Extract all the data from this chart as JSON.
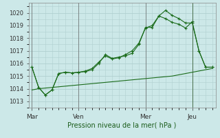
{
  "background_color": "#cce8e8",
  "grid_color": "#b0d0d0",
  "line_color": "#1a6b1a",
  "x_ticks_labels": [
    "Mar",
    "Ven",
    "Mer",
    "Jeu"
  ],
  "x_ticks_pos": [
    0,
    7,
    17,
    24
  ],
  "xlabel": "Pression niveau de la mer( hPa )",
  "ylim": [
    1012.5,
    1020.8
  ],
  "yticks": [
    1013,
    1014,
    1015,
    1016,
    1017,
    1018,
    1019,
    1020
  ],
  "series1_x": [
    0,
    1,
    2,
    3,
    4,
    5,
    6,
    7,
    8,
    9,
    10,
    11,
    12,
    13,
    14,
    15,
    16,
    17,
    18,
    19,
    20,
    21,
    22,
    23,
    24,
    25,
    26,
    27
  ],
  "series1_y": [
    1015.7,
    1014.1,
    1013.5,
    1013.9,
    1015.2,
    1015.3,
    1015.25,
    1015.3,
    1015.35,
    1015.5,
    1016.0,
    1016.7,
    1016.4,
    1016.5,
    1016.6,
    1016.8,
    1017.5,
    1018.85,
    1018.85,
    1019.75,
    1019.55,
    1019.25,
    1019.1,
    1018.8,
    1019.3,
    1017.0,
    1015.7,
    1015.7
  ],
  "series2_x": [
    0,
    1,
    2,
    3,
    4,
    5,
    6,
    7,
    8,
    9,
    10,
    11,
    12,
    13,
    14,
    15,
    16,
    17,
    18,
    19,
    20,
    21,
    22,
    23,
    24,
    25,
    26,
    27
  ],
  "series2_y": [
    1015.7,
    1014.1,
    1013.5,
    1013.9,
    1015.2,
    1015.3,
    1015.25,
    1015.3,
    1015.4,
    1015.6,
    1016.1,
    1016.6,
    1016.35,
    1016.45,
    1016.7,
    1017.0,
    1017.6,
    1018.8,
    1019.0,
    1019.75,
    1020.2,
    1019.8,
    1019.55,
    1019.2,
    1019.2,
    1017.0,
    1015.7,
    1015.7
  ],
  "series3_x": [
    0,
    1,
    2,
    3,
    4,
    5,
    6,
    7,
    8,
    9,
    10,
    11,
    12,
    13,
    14,
    15,
    16,
    17,
    18,
    19,
    20,
    21,
    22,
    23,
    24,
    25,
    26,
    27
  ],
  "series3_y": [
    1013.9,
    1014.0,
    1014.05,
    1014.1,
    1014.15,
    1014.2,
    1014.25,
    1014.3,
    1014.35,
    1014.4,
    1014.45,
    1014.5,
    1014.55,
    1014.6,
    1014.65,
    1014.7,
    1014.75,
    1014.8,
    1014.85,
    1014.9,
    1014.95,
    1015.0,
    1015.1,
    1015.2,
    1015.3,
    1015.4,
    1015.5,
    1015.6
  ],
  "vline_x": 24
}
